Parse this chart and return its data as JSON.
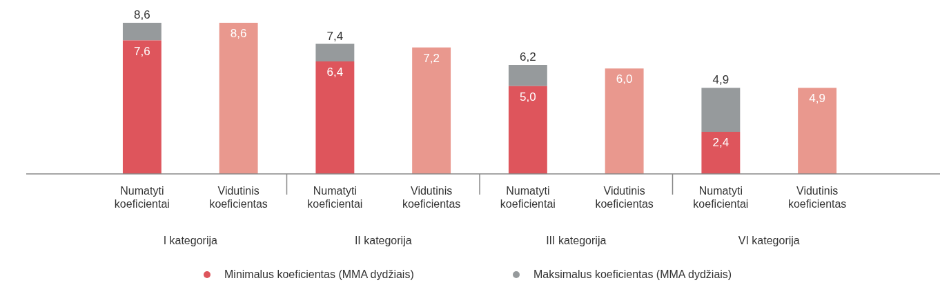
{
  "chart_data": {
    "type": "bar",
    "stacked": true,
    "tick_labels": "x",
    "legend": "bottom",
    "marker": "circle",
    "grid": false,
    "categories": [
      "Numatyti koeficientai",
      "Vidutinis koeficientas",
      "Numatyti koeficientai",
      "Vidutinis koeficientas",
      "Numatyti koeficientai",
      "Vidutinis koeficientas",
      "Numatyti koeficientai",
      "Vidutinis koeficientas"
    ],
    "series": [
      {
        "name": "Minimalus koeficientas (MMA dydžiais)",
        "color": "#de555c",
        "values": [
          7.6,
          null,
          6.4,
          null,
          5.0,
          null,
          2.4,
          null
        ],
        "value_labels": [
          "7,6",
          null,
          "6,4",
          null,
          "5,0",
          null,
          "2,4",
          null
        ]
      },
      {
        "name": "Maksimalus koeficientas (MMA dydžiais)",
        "color": "#969a9c",
        "values": [
          1.0,
          null,
          1.0,
          null,
          1.2,
          null,
          2.5,
          null
        ]
      },
      {
        "color": "#e9988e",
        "values": [
          null,
          8.6,
          null,
          7.2,
          null,
          6.0,
          null,
          4.9
        ],
        "value_labels": [
          null,
          "8,6",
          null,
          "7,2",
          null,
          "6,0",
          null,
          "4,9"
        ]
      }
    ],
    "totals": [
      "8,6",
      null,
      "7,4",
      null,
      "6,2",
      null,
      "4,9",
      null
    ],
    "annotations": [
      "I kategorija",
      "II kategorija",
      "III kategorija",
      "VI kategorija"
    ]
  }
}
